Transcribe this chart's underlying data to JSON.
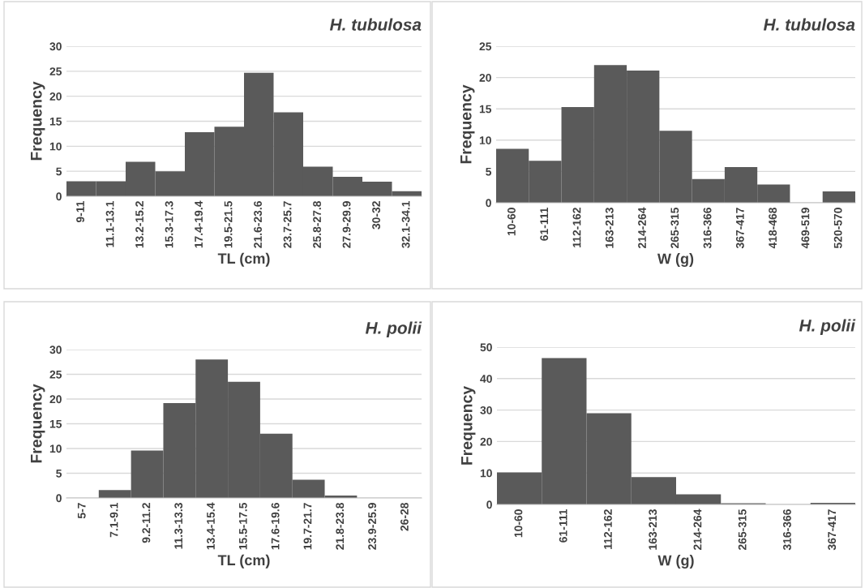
{
  "chart_data": [
    {
      "type": "bar",
      "title": "H. tubulosa",
      "xlabel": "TL (cm)",
      "ylabel": "Frequency",
      "categories": [
        "9-11",
        "11.1-13.1",
        "13.2-15.2",
        "15.3-17.3",
        "17.4-19.4",
        "19.5-21.5",
        "21.6-23.6",
        "23.7-25.7",
        "25.8-27.8",
        "27.9-29.9",
        "30-32",
        "32.1-34.1"
      ],
      "values": [
        3,
        3,
        6.9,
        5,
        12.8,
        13.9,
        24.7,
        16.8,
        5.9,
        3.9,
        2.9,
        1
      ],
      "color": "#5a5a5a",
      "ylim": [
        0,
        30
      ],
      "yticks": [
        0,
        5,
        10,
        15,
        20,
        25,
        30
      ],
      "grid": "y"
    },
    {
      "type": "bar",
      "title": "H. tubulosa",
      "xlabel": "W (g)",
      "ylabel": "Frequency",
      "categories": [
        "10-60",
        "61-111",
        "112-162",
        "163-213",
        "214-264",
        "265-315",
        "316-366",
        "367-417",
        "418-468",
        "469-519",
        "520-570"
      ],
      "values": [
        8.6,
        6.7,
        15.3,
        22,
        21.1,
        11.5,
        3.8,
        5.7,
        2.9,
        0,
        1.8
      ],
      "color": "#5a5a5a",
      "ylim": [
        0,
        25
      ],
      "yticks": [
        0,
        5,
        10,
        15,
        20,
        25
      ],
      "grid": "y"
    },
    {
      "type": "bar",
      "title": "H. polii",
      "xlabel": "TL (cm)",
      "ylabel": "Frequency",
      "categories": [
        "5-7",
        "7.1-9.1",
        "9.2-11.2",
        "11.3-13.3",
        "13.4-15.4",
        "15.5-17.5",
        "17.6-19.6",
        "19.7-21.7",
        "21.8-23.8",
        "23.9-25.9",
        "26-28"
      ],
      "values": [
        0,
        1.6,
        9.6,
        19.2,
        28,
        23.5,
        13,
        3.7,
        0.5,
        null,
        null
      ],
      "color": "#5a5a5a",
      "ylim": [
        0,
        30
      ],
      "yticks": [
        0,
        5,
        10,
        15,
        20,
        25,
        30
      ],
      "grid": "y"
    },
    {
      "type": "bar",
      "title": "H. polii",
      "xlabel": "W (g)",
      "ylabel": "Frequency",
      "categories": [
        "10-60",
        "61-111",
        "112-162",
        "163-213",
        "214-264",
        "265-315",
        "316-366",
        "367-417"
      ],
      "values": [
        10.2,
        46.5,
        29,
        8.7,
        3.2,
        0.4,
        null,
        0.5
      ],
      "color": "#5a5a5a",
      "ylim": [
        0,
        50
      ],
      "yticks": [
        0,
        10,
        20,
        30,
        40,
        50
      ],
      "grid": "y"
    }
  ]
}
